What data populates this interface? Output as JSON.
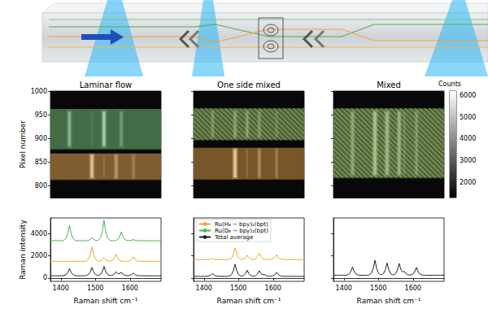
{
  "chart_data": [
    {
      "type": "image",
      "title": "Laminar flow",
      "ylabel": "Pixel number",
      "xlim": [
        1370,
        1690
      ],
      "ylim": [
        775,
        1000
      ],
      "yticks": [
        800,
        850,
        900,
        950,
        1000
      ],
      "tick_labels": "y",
      "cells": [
        [
          1370,
          1690,
          775,
          1000,
          1450
        ],
        [
          1370,
          1690,
          814,
          868,
          2200
        ],
        [
          1370,
          1690,
          878,
          962,
          2500
        ],
        [
          1417,
          1433,
          880,
          960,
          3200
        ],
        [
          1421,
          1429,
          884,
          956,
          4600
        ],
        [
          1486,
          1494,
          884,
          956,
          2900
        ],
        [
          1517,
          1533,
          880,
          960,
          3500
        ],
        [
          1521,
          1529,
          884,
          956,
          5600
        ],
        [
          1568,
          1582,
          880,
          960,
          3000
        ],
        [
          1571,
          1579,
          884,
          956,
          3900
        ],
        [
          1482,
          1498,
          814,
          868,
          3400
        ],
        [
          1486,
          1494,
          817,
          865,
          5200
        ],
        [
          1522,
          1528,
          817,
          865,
          2800
        ],
        [
          1553,
          1567,
          814,
          868,
          2900
        ],
        [
          1556,
          1564,
          817,
          865,
          3900
        ],
        [
          1604,
          1616,
          814,
          868,
          2700
        ],
        [
          1607,
          1613,
          817,
          865,
          3300
        ]
      ],
      "regions": [
        {
          "series": [
            "Ru(H₈ − bpy)₂(bpt)"
          ],
          "y": [
            812,
            868
          ]
        },
        {
          "series": [
            "Ru(D₈ − bpy)₂(bpt)"
          ],
          "y": [
            876,
            962
          ]
        }
      ]
    },
    {
      "type": "image",
      "title": "One side mixed",
      "xlim": [
        1370,
        1690
      ],
      "ylim": [
        775,
        1000
      ],
      "yticks": [
        800,
        850,
        900,
        950,
        1000
      ],
      "tick_labels": false,
      "cells": [
        [
          1370,
          1690,
          775,
          1000,
          1450
        ],
        [
          1370,
          1690,
          815,
          880,
          2000
        ],
        [
          1370,
          1690,
          898,
          962,
          2500
        ],
        [
          1419,
          1431,
          900,
          960,
          3000
        ],
        [
          1422,
          1428,
          903,
          957,
          3800
        ],
        [
          1484,
          1496,
          900,
          960,
          3300
        ],
        [
          1487,
          1493,
          903,
          957,
          4300
        ],
        [
          1519,
          1531,
          900,
          960,
          3200
        ],
        [
          1522,
          1528,
          903,
          957,
          4200
        ],
        [
          1554,
          1566,
          900,
          960,
          3100
        ],
        [
          1557,
          1563,
          903,
          957,
          3900
        ],
        [
          1605,
          1615,
          900,
          960,
          2800
        ],
        [
          1607,
          1613,
          903,
          957,
          3300
        ],
        [
          1482,
          1498,
          815,
          880,
          3500
        ],
        [
          1486,
          1494,
          818,
          877,
          5400
        ],
        [
          1522,
          1528,
          818,
          877,
          2700
        ],
        [
          1554,
          1566,
          815,
          880,
          2800
        ],
        [
          1557,
          1563,
          818,
          877,
          3600
        ],
        [
          1605,
          1615,
          815,
          880,
          2600
        ],
        [
          1607,
          1613,
          818,
          877,
          3200
        ]
      ],
      "regions": [
        {
          "series": [
            "Ru(D₈ − bpy)₂(bpt)",
            "Ru(H₈ − bpy)₂(bpt)"
          ],
          "y": [
            896,
            964
          ]
        },
        {
          "series": [
            "Ru(H₈ − bpy)₂(bpt)"
          ],
          "y": [
            813,
            880
          ]
        }
      ]
    },
    {
      "type": "image",
      "title": "Mixed",
      "xlim": [
        1370,
        1690
      ],
      "ylim": [
        775,
        1000
      ],
      "yticks": [
        800,
        850,
        900,
        950,
        1000
      ],
      "tick_labels": false,
      "cells": [
        [
          1370,
          1690,
          775,
          1000,
          1450
        ],
        [
          1370,
          1690,
          818,
          962,
          2600
        ],
        [
          1418,
          1432,
          820,
          960,
          3200
        ],
        [
          1421,
          1429,
          824,
          956,
          4300
        ],
        [
          1482,
          1498,
          820,
          960,
          3700
        ],
        [
          1486,
          1494,
          824,
          956,
          5300
        ],
        [
          1517,
          1533,
          820,
          960,
          3500
        ],
        [
          1521,
          1529,
          824,
          956,
          4900
        ],
        [
          1553,
          1567,
          820,
          960,
          3400
        ],
        [
          1556,
          1564,
          824,
          956,
          4700
        ],
        [
          1572,
          1578,
          824,
          956,
          3300
        ],
        [
          1604,
          1616,
          820,
          960,
          3100
        ],
        [
          1607,
          1613,
          824,
          956,
          4000
        ]
      ],
      "regions": [
        {
          "series": [
            "Ru(D₈ − bpy)₂(bpt)",
            "Ru(H₈ − bpy)₂(bpt)"
          ],
          "y": [
            816,
            964
          ]
        }
      ],
      "colorbar_label": "Counts",
      "colorbar_range": [
        1300,
        6200
      ],
      "colorbar_ticks": [
        2000,
        3000,
        4000,
        5000,
        6000
      ]
    },
    {
      "type": "line",
      "xlabel": "Raman shift cm⁻¹",
      "ylabel": "Raman intensity",
      "xlim": [
        1370,
        1690
      ],
      "xticks": [
        1400,
        1500,
        1600
      ],
      "ylim": [
        -300,
        5400
      ],
      "yticks": [
        0,
        2000,
        4000
      ],
      "x": [
        1370,
        1375,
        1380,
        1385,
        1390,
        1395,
        1400,
        1405,
        1410,
        1415,
        1420,
        1425,
        1430,
        1435,
        1440,
        1445,
        1450,
        1455,
        1460,
        1465,
        1470,
        1475,
        1480,
        1485,
        1490,
        1495,
        1500,
        1505,
        1510,
        1515,
        1520,
        1525,
        1530,
        1535,
        1540,
        1545,
        1550,
        1555,
        1560,
        1565,
        1570,
        1575,
        1580,
        1585,
        1590,
        1595,
        1600,
        1605,
        1610,
        1615,
        1620,
        1625,
        1630,
        1635,
        1640,
        1645,
        1650,
        1655,
        1660,
        1665,
        1670,
        1675,
        1680,
        1685,
        1690
      ],
      "series": [
        {
          "name": "Ru(H₈ − bpy)₂(bpt)",
          "color": "#f5a431",
          "values": [
            1500,
            1500,
            1500,
            1500,
            1500,
            1500,
            1500,
            1500,
            1500,
            1500,
            1500,
            1500,
            1500,
            1500,
            1500,
            1500,
            1500,
            1500,
            1500,
            1500,
            1500,
            1565,
            1695,
            2085,
            2800,
            2085,
            1695,
            1565,
            1518,
            1553,
            1658,
            1850,
            1658,
            1553,
            1518,
            1533,
            1598,
            1793,
            2150,
            1793,
            1598,
            1533,
            1500,
            1500,
            1500,
            1520,
            1560,
            1680,
            1900,
            1680,
            1560,
            1520,
            1500,
            1500,
            1500,
            1500,
            1500,
            1500,
            1500,
            1500,
            1500,
            1500,
            1500,
            1500,
            1500
          ]
        },
        {
          "name": "Ru(D₈ − bpy)₂(bpt)",
          "color": "#4caf50",
          "values": [
            3350,
            3350,
            3350,
            3350,
            3350,
            3350,
            3350,
            3350,
            3420,
            3560,
            3980,
            4750,
            3980,
            3560,
            3420,
            3350,
            3350,
            3350,
            3350,
            3350,
            3350,
            3363,
            3388,
            3463,
            3600,
            3463,
            3388,
            3363,
            3443,
            3628,
            4183,
            5200,
            4183,
            3628,
            3443,
            3350,
            3350,
            3350,
            3390,
            3470,
            3710,
            4150,
            3710,
            3470,
            3390,
            3355,
            3365,
            3395,
            3450,
            3395,
            3365,
            3355,
            3350,
            3350,
            3350,
            3350,
            3350,
            3350,
            3350,
            3350,
            3350,
            3350,
            3350,
            3350,
            3350
          ]
        },
        {
          "name": "Total average",
          "color": "#222222",
          "values": [
            200,
            200,
            200,
            200,
            200,
            200,
            200,
            200,
            233,
            298,
            493,
            850,
            493,
            298,
            233,
            200,
            200,
            200,
            200,
            200,
            200,
            238,
            313,
            538,
            950,
            538,
            313,
            238,
            243,
            328,
            583,
            1050,
            583,
            328,
            243,
            218,
            253,
            358,
            565,
            403,
            388,
            518,
            335,
            245,
            215,
            213,
            238,
            313,
            450,
            313,
            238,
            213,
            200,
            200,
            200,
            200,
            200,
            200,
            200,
            200,
            200,
            200,
            200,
            200,
            200
          ]
        }
      ]
    },
    {
      "type": "line",
      "xlabel": "Raman shift cm⁻¹",
      "legend": "upper left",
      "xlim": [
        1370,
        1690
      ],
      "xticks": [
        1400,
        1500,
        1600
      ],
      "ylim": [
        -300,
        5400
      ],
      "yticks": [
        0,
        2000,
        4000
      ],
      "tick_labels": "x",
      "x": [
        1370,
        1375,
        1380,
        1385,
        1390,
        1395,
        1400,
        1405,
        1410,
        1415,
        1420,
        1425,
        1430,
        1435,
        1440,
        1445,
        1450,
        1455,
        1460,
        1465,
        1470,
        1475,
        1480,
        1485,
        1490,
        1495,
        1500,
        1505,
        1510,
        1515,
        1520,
        1525,
        1530,
        1535,
        1540,
        1545,
        1550,
        1555,
        1560,
        1565,
        1570,
        1575,
        1580,
        1585,
        1590,
        1595,
        1600,
        1605,
        1610,
        1615,
        1620,
        1625,
        1630,
        1635,
        1640,
        1645,
        1650,
        1655,
        1660,
        1665,
        1670,
        1675,
        1680,
        1685,
        1690
      ],
      "series": [
        {
          "name": "Ru(H₈ − bpy)₂(bpt)",
          "color": "#f5a431",
          "values": [
            1650,
            1650,
            1650,
            1650,
            1650,
            1650,
            1650,
            1650,
            1655,
            1665,
            1695,
            1750,
            1695,
            1665,
            1655,
            1650,
            1650,
            1650,
            1650,
            1650,
            1650,
            1703,
            1808,
            2123,
            2700,
            2123,
            1808,
            1703,
            1670,
            1710,
            1830,
            2050,
            1830,
            1710,
            1670,
            1680,
            1740,
            1920,
            2250,
            1920,
            1740,
            1680,
            1650,
            1650,
            1650,
            1673,
            1718,
            1853,
            2100,
            1853,
            1718,
            1673,
            1650,
            1650,
            1650,
            1650,
            1650,
            1650,
            1650,
            1650,
            1650,
            1650,
            1650,
            1650,
            1650
          ]
        },
        {
          "name": "Total average",
          "color": "#222222",
          "values": [
            150,
            150,
            150,
            150,
            150,
            150,
            150,
            150,
            163,
            188,
            263,
            400,
            263,
            188,
            163,
            150,
            150,
            150,
            150,
            150,
            150,
            205,
            315,
            645,
            1250,
            645,
            315,
            205,
            178,
            233,
            398,
            700,
            398,
            233,
            178,
            175,
            225,
            375,
            658,
            398,
            293,
            325,
            218,
            173,
            158,
            168,
            203,
            308,
            500,
            308,
            203,
            168,
            150,
            150,
            150,
            150,
            150,
            150,
            150,
            150,
            150,
            150,
            150,
            150,
            150
          ]
        }
      ]
    },
    {
      "type": "line",
      "xlabel": "Raman shift cm⁻¹",
      "xlim": [
        1370,
        1690
      ],
      "xticks": [
        1400,
        1500,
        1600
      ],
      "ylim": [
        -300,
        5400
      ],
      "yticks": [
        0,
        2000,
        4000
      ],
      "tick_labels": "x",
      "x": [
        1370,
        1375,
        1380,
        1385,
        1390,
        1395,
        1400,
        1405,
        1410,
        1415,
        1420,
        1425,
        1430,
        1435,
        1440,
        1445,
        1450,
        1455,
        1460,
        1465,
        1470,
        1475,
        1480,
        1485,
        1490,
        1495,
        1500,
        1505,
        1510,
        1515,
        1520,
        1525,
        1530,
        1535,
        1540,
        1545,
        1550,
        1555,
        1560,
        1565,
        1570,
        1575,
        1580,
        1585,
        1590,
        1595,
        1600,
        1605,
        1610,
        1615,
        1620,
        1625,
        1630,
        1635,
        1640,
        1645,
        1650,
        1655,
        1660,
        1665,
        1670,
        1675,
        1680,
        1685,
        1690
      ],
      "series": [
        {
          "name": "Total average",
          "color": "#222222",
          "values": [
            250,
            250,
            250,
            250,
            250,
            250,
            250,
            250,
            288,
            363,
            588,
            1000,
            588,
            363,
            288,
            250,
            250,
            250,
            250,
            250,
            250,
            318,
            453,
            858,
            1600,
            858,
            453,
            318,
            305,
            415,
            745,
            1350,
            745,
            415,
            305,
            303,
            408,
            723,
            1315,
            768,
            543,
            603,
            385,
            295,
            265,
            285,
            355,
            565,
            950,
            565,
            355,
            285,
            250,
            250,
            250,
            250,
            250,
            250,
            250,
            250,
            250,
            250,
            250,
            250,
            250
          ]
        }
      ]
    }
  ]
}
